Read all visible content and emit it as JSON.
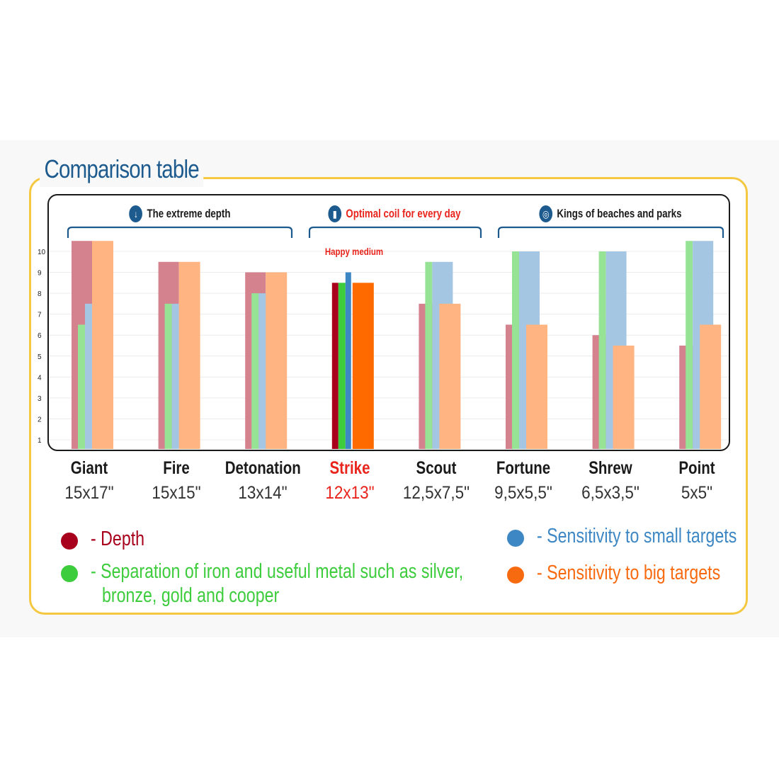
{
  "title": "Comparison table",
  "groups": [
    {
      "label": "The extreme depth",
      "icon": "arrow-down-icon",
      "highlight": false
    },
    {
      "label": "Optimal coil for every day",
      "icon": "bar-chart-icon",
      "highlight": true
    },
    {
      "label": "Kings of beaches and parks",
      "icon": "target-icon",
      "highlight": false
    }
  ],
  "annotation": "Happy medium",
  "coils": [
    {
      "name": "Giant",
      "size": "15x17\"",
      "highlight": false
    },
    {
      "name": "Fire",
      "size": "15x15\"",
      "highlight": false
    },
    {
      "name": "Detonation",
      "size": "13x14\"",
      "highlight": false
    },
    {
      "name": "Strike",
      "size": "12x13\"",
      "highlight": true
    },
    {
      "name": "Scout",
      "size": "12,5x7,5\"",
      "highlight": false
    },
    {
      "name": "Fortune",
      "size": "9,5x5,5\"",
      "highlight": false
    },
    {
      "name": "Shrew",
      "size": "6,5x3,5\"",
      "highlight": false
    },
    {
      "name": "Point",
      "size": "5x5\"",
      "highlight": false
    }
  ],
  "legend": [
    {
      "text": "- Depth",
      "color": "#a8001c"
    },
    {
      "text": "- Separation of iron and useful metal such as silver,",
      "text2": "bronze, gold and cooper",
      "color": "#3ccc3c"
    },
    {
      "text": "- Sensitivity to small targets",
      "color": "#3d87c4"
    },
    {
      "text": "- Sensitivity to big targets",
      "color": "#f86a10"
    }
  ],
  "chart_data": {
    "type": "bar",
    "categories": [
      "Giant",
      "Fire",
      "Detonation",
      "Strike",
      "Scout",
      "Fortune",
      "Shrew",
      "Point"
    ],
    "ylim": [
      0.5,
      10.5
    ],
    "yticks": [
      1,
      2,
      3,
      4,
      5,
      6,
      7,
      8,
      9,
      10
    ],
    "grid": true,
    "series": [
      {
        "name": "Depth",
        "values": [
          10.5,
          9.5,
          9,
          8.5,
          7.5,
          6.5,
          6,
          5.5
        ],
        "color": "#d4828e",
        "highlight_color": "#a8001c"
      },
      {
        "name": "Separation",
        "values": [
          6.5,
          7.5,
          8,
          8.5,
          9.5,
          10,
          10,
          10.5
        ],
        "color": "#96e396",
        "highlight_color": "#3ccc3c"
      },
      {
        "name": "Sensitivity to small targets",
        "values": [
          7.5,
          7.5,
          8,
          9,
          9.5,
          10,
          10,
          10.5
        ],
        "color": "#a5c6e2",
        "highlight_color": "#3d87c4"
      },
      {
        "name": "Sensitivity to big targets",
        "values": [
          10.5,
          9.5,
          9,
          8.5,
          7.5,
          6.5,
          5.5,
          6.5
        ],
        "color": "#ffb482",
        "highlight_color": "#ff6a00"
      }
    ]
  }
}
